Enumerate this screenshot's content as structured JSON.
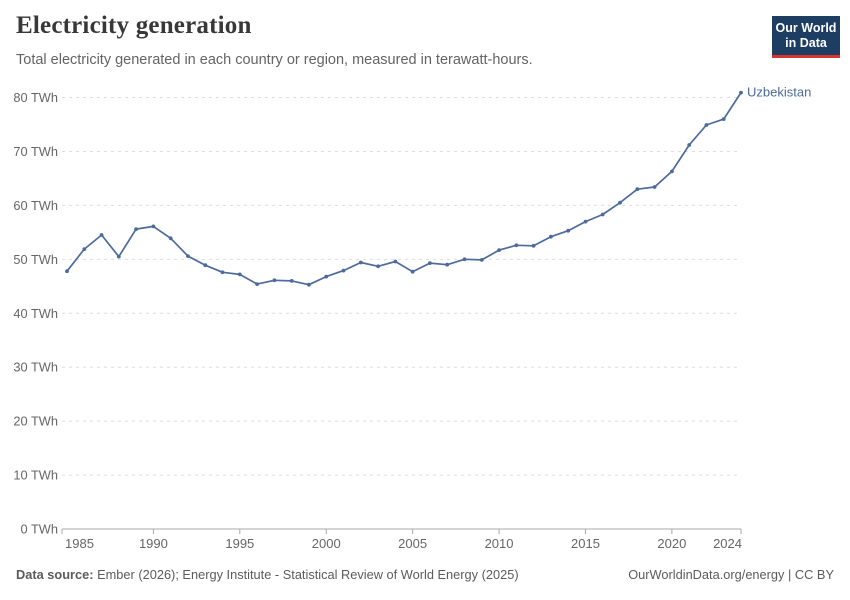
{
  "header": {
    "title": "Electricity generation",
    "subtitle": "Total electricity generated in each country or region, measured in terawatt-hours."
  },
  "logo": {
    "line1": "Our World",
    "line2": "in Data",
    "bg_color": "#1d3d63",
    "accent_color": "#d8352a"
  },
  "footer": {
    "source_label": "Data source:",
    "source_text": " Ember (2026); Energy Institute - Statistical Review of World Energy (2025)",
    "right_text": "OurWorldinData.org/energy | CC BY"
  },
  "chart_data": {
    "type": "line",
    "title": "Electricity generation",
    "unit": "terawatt-hours",
    "x": [
      1985,
      1986,
      1987,
      1988,
      1989,
      1990,
      1991,
      1992,
      1993,
      1994,
      1995,
      1996,
      1997,
      1998,
      1999,
      2000,
      2001,
      2002,
      2003,
      2004,
      2005,
      2006,
      2007,
      2008,
      2009,
      2010,
      2011,
      2012,
      2013,
      2014,
      2015,
      2016,
      2017,
      2018,
      2019,
      2020,
      2021,
      2022,
      2023,
      2024
    ],
    "series": [
      {
        "name": "Uzbekistan",
        "color": "#4c6a9c",
        "values": [
          47.8,
          51.9,
          54.5,
          50.5,
          55.6,
          56.1,
          53.9,
          50.6,
          48.9,
          47.6,
          47.2,
          45.4,
          46.1,
          46.0,
          45.3,
          46.8,
          47.9,
          49.4,
          48.7,
          49.6,
          47.7,
          49.3,
          49.0,
          50.0,
          49.9,
          51.7,
          52.6,
          52.5,
          54.2,
          55.3,
          57.0,
          58.3,
          60.5,
          63.0,
          63.4,
          66.3,
          71.2,
          74.9,
          76.0,
          80.9
        ]
      }
    ],
    "xticks": [
      1985,
      1990,
      1995,
      2000,
      2005,
      2010,
      2015,
      2020,
      2024
    ],
    "ylim": [
      0,
      80
    ],
    "ytick_step": 10,
    "y_tick_suffix": " TWh",
    "grid": "dashed horizontal",
    "legend_position": "end-of-line label",
    "colors": {
      "grid": "#dddddd",
      "axis": "#a8a8a8",
      "tick_text": "#666666"
    }
  }
}
